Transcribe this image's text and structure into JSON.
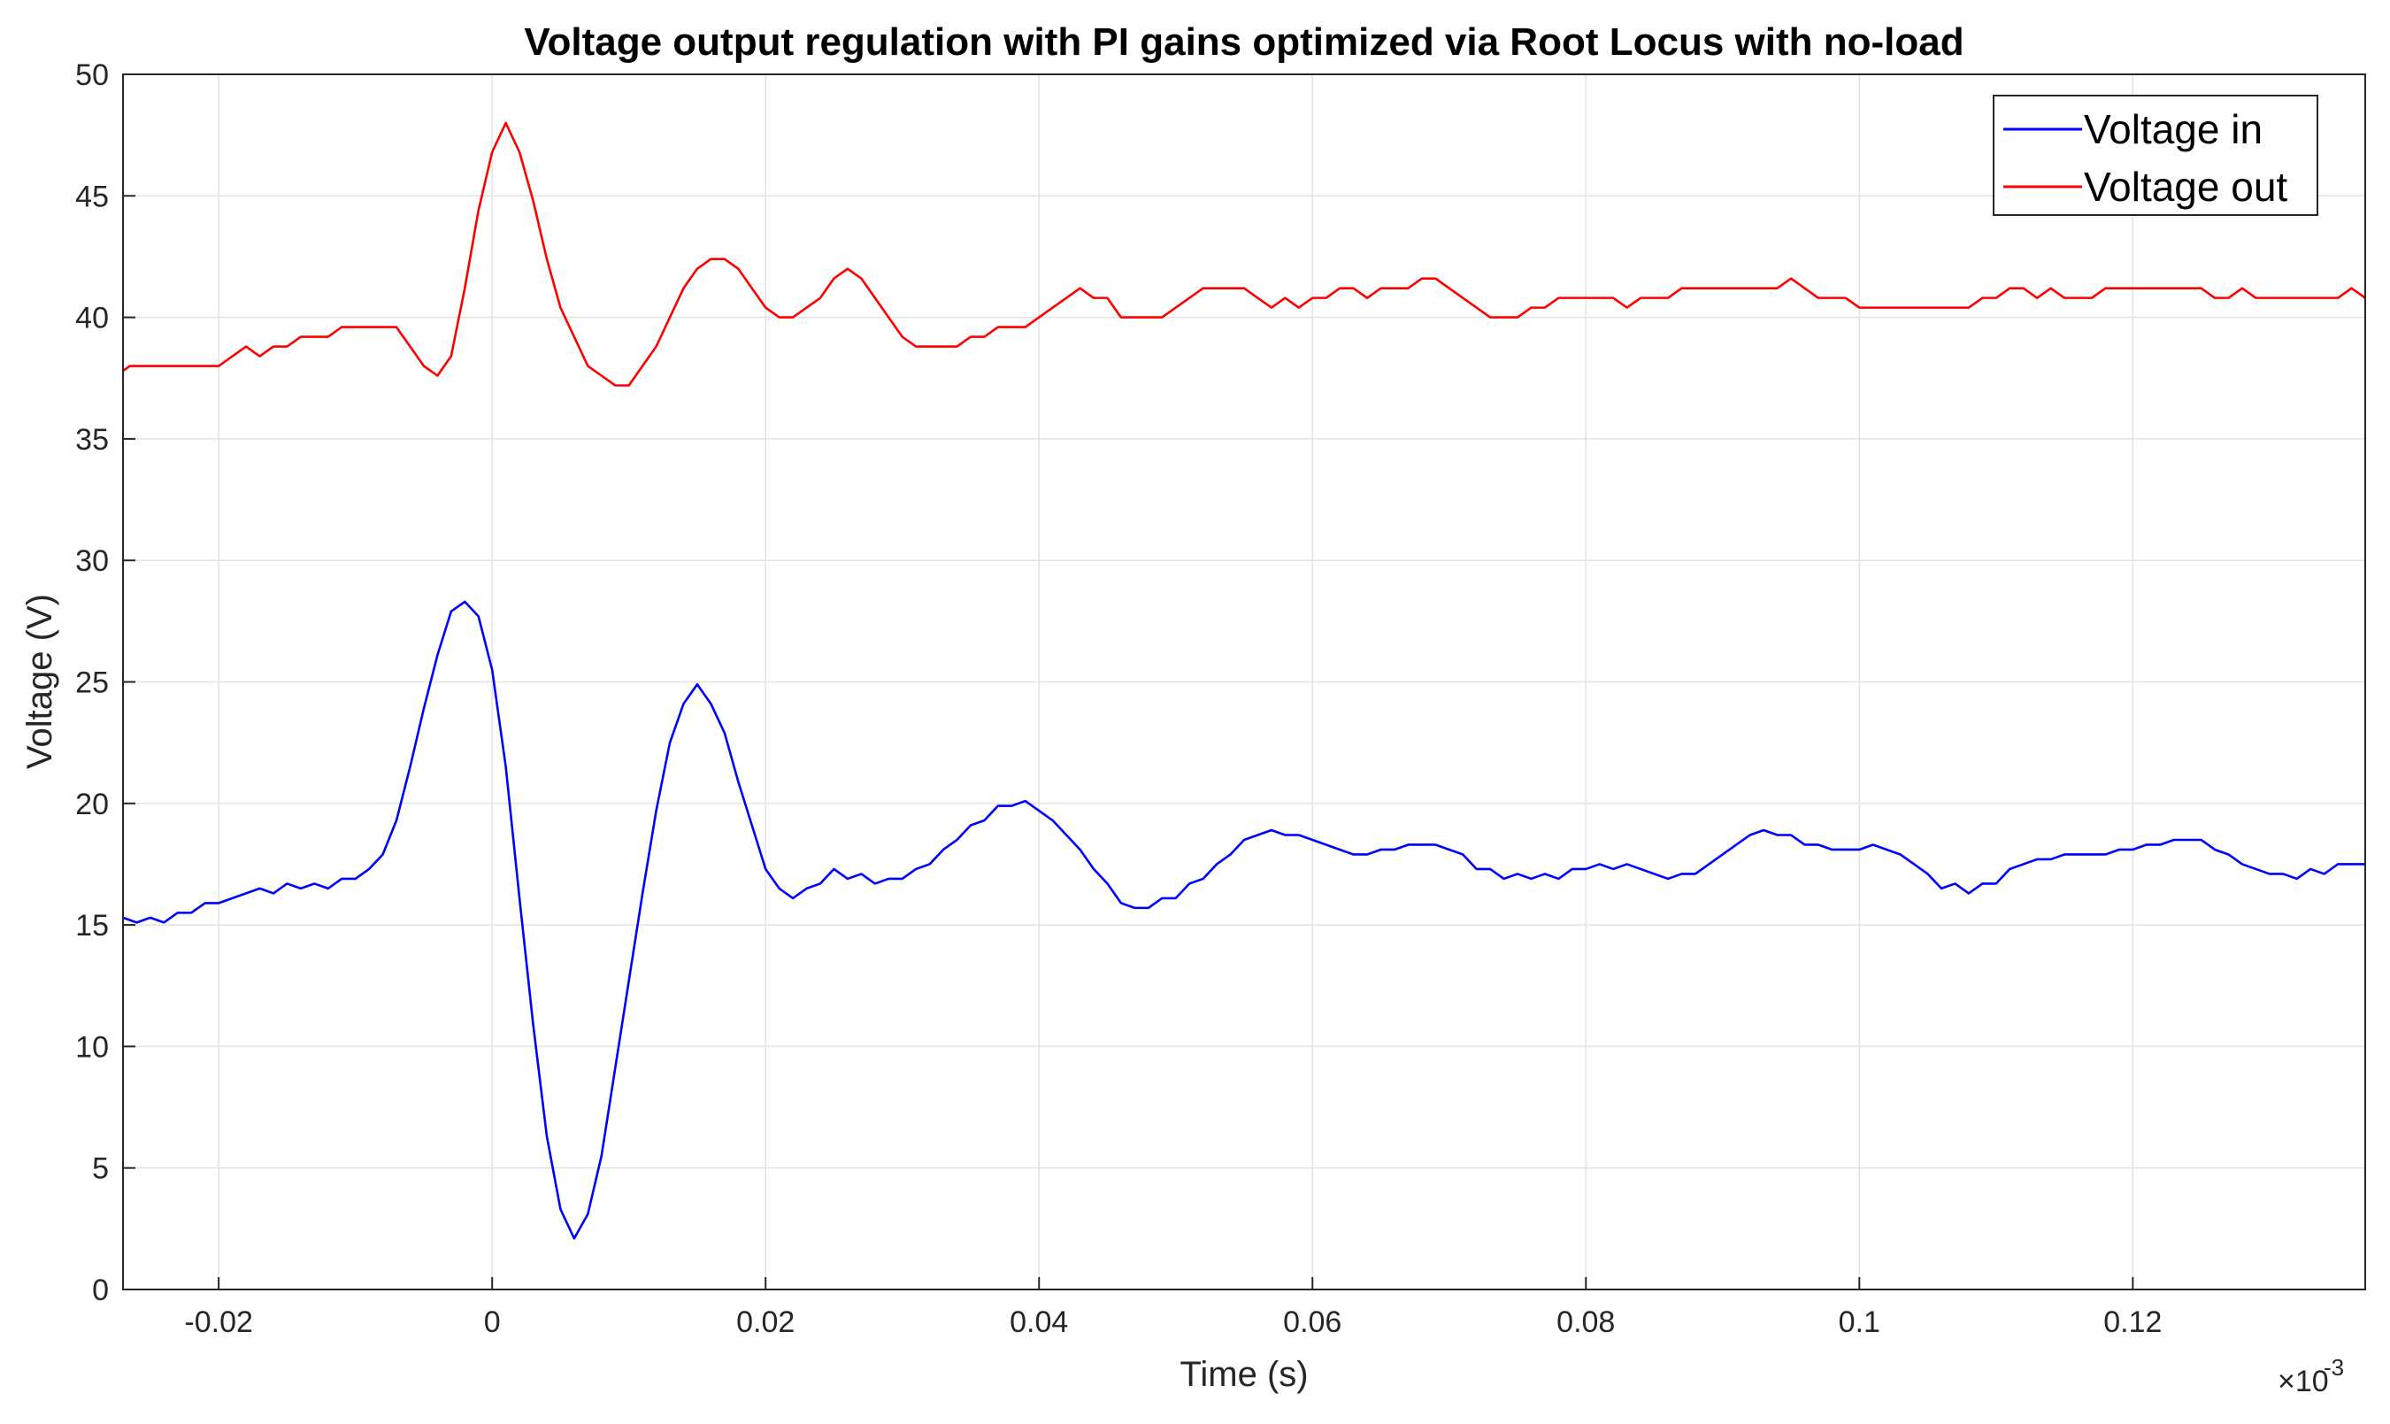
{
  "chart_data": {
    "type": "line",
    "title": "Voltage output regulation with PI gains optimized via Root Locus with no-load",
    "xlabel": "Time (s)",
    "ylabel": "Voltage (V)",
    "x_exponent_label": "×10",
    "x_exponent_power": "-3",
    "xlim": [
      -0.027,
      0.137
    ],
    "ylim": [
      0,
      50
    ],
    "x_ticks": [
      -0.02,
      0,
      0.02,
      0.04,
      0.06,
      0.08,
      0.1,
      0.12
    ],
    "x_tick_labels": [
      "-0.02",
      "0",
      "0.02",
      "0.04",
      "0.06",
      "0.08",
      "0.1",
      "0.12"
    ],
    "y_ticks": [
      0,
      5,
      10,
      15,
      20,
      25,
      30,
      35,
      40,
      45,
      50
    ],
    "y_tick_labels": [
      "0",
      "5",
      "10",
      "15",
      "20",
      "25",
      "30",
      "35",
      "40",
      "45",
      "50"
    ],
    "grid": true,
    "legend_position": "top-right",
    "series": [
      {
        "name": "Voltage in",
        "color": "#0000ff",
        "points": [
          [
            -0.027,
            15.3
          ],
          [
            -0.026,
            15.1
          ],
          [
            -0.025,
            15.3
          ],
          [
            -0.024,
            15.1
          ],
          [
            -0.023,
            15.5
          ],
          [
            -0.022,
            15.5
          ],
          [
            -0.021,
            15.9
          ],
          [
            -0.02,
            15.9
          ],
          [
            -0.019,
            16.1
          ],
          [
            -0.018,
            16.3
          ],
          [
            -0.017,
            16.5
          ],
          [
            -0.016,
            16.3
          ],
          [
            -0.015,
            16.7
          ],
          [
            -0.014,
            16.5
          ],
          [
            -0.013,
            16.7
          ],
          [
            -0.012,
            16.5
          ],
          [
            -0.011,
            16.9
          ],
          [
            -0.01,
            16.9
          ],
          [
            -0.009,
            17.3
          ],
          [
            -0.008,
            17.9
          ],
          [
            -0.007,
            19.3
          ],
          [
            -0.006,
            21.5
          ],
          [
            -0.005,
            23.9
          ],
          [
            -0.004,
            26.1
          ],
          [
            -0.003,
            27.9
          ],
          [
            -0.002,
            28.3
          ],
          [
            -0.001,
            27.7
          ],
          [
            0.0,
            25.5
          ],
          [
            0.001,
            21.5
          ],
          [
            0.002,
            16.1
          ],
          [
            0.003,
            10.9
          ],
          [
            0.004,
            6.3
          ],
          [
            0.005,
            3.3
          ],
          [
            0.006,
            2.1
          ],
          [
            0.007,
            3.1
          ],
          [
            0.008,
            5.5
          ],
          [
            0.009,
            9.1
          ],
          [
            0.01,
            12.7
          ],
          [
            0.011,
            16.3
          ],
          [
            0.012,
            19.7
          ],
          [
            0.013,
            22.5
          ],
          [
            0.014,
            24.1
          ],
          [
            0.015,
            24.9
          ],
          [
            0.016,
            24.1
          ],
          [
            0.017,
            22.9
          ],
          [
            0.018,
            20.9
          ],
          [
            0.019,
            19.1
          ],
          [
            0.02,
            17.3
          ],
          [
            0.021,
            16.5
          ],
          [
            0.022,
            16.1
          ],
          [
            0.023,
            16.5
          ],
          [
            0.024,
            16.7
          ],
          [
            0.025,
            17.3
          ],
          [
            0.026,
            16.9
          ],
          [
            0.027,
            17.1
          ],
          [
            0.028,
            16.7
          ],
          [
            0.029,
            16.9
          ],
          [
            0.03,
            16.9
          ],
          [
            0.031,
            17.3
          ],
          [
            0.032,
            17.5
          ],
          [
            0.033,
            18.1
          ],
          [
            0.034,
            18.5
          ],
          [
            0.035,
            19.1
          ],
          [
            0.036,
            19.3
          ],
          [
            0.037,
            19.9
          ],
          [
            0.038,
            19.9
          ],
          [
            0.039,
            20.1
          ],
          [
            0.04,
            19.7
          ],
          [
            0.041,
            19.3
          ],
          [
            0.042,
            18.7
          ],
          [
            0.043,
            18.1
          ],
          [
            0.044,
            17.3
          ],
          [
            0.045,
            16.7
          ],
          [
            0.046,
            15.9
          ],
          [
            0.047,
            15.7
          ],
          [
            0.048,
            15.7
          ],
          [
            0.049,
            16.1
          ],
          [
            0.05,
            16.1
          ],
          [
            0.051,
            16.7
          ],
          [
            0.052,
            16.9
          ],
          [
            0.053,
            17.5
          ],
          [
            0.054,
            17.9
          ],
          [
            0.055,
            18.5
          ],
          [
            0.056,
            18.7
          ],
          [
            0.057,
            18.9
          ],
          [
            0.058,
            18.7
          ],
          [
            0.059,
            18.7
          ],
          [
            0.06,
            18.5
          ],
          [
            0.061,
            18.3
          ],
          [
            0.062,
            18.1
          ],
          [
            0.063,
            17.9
          ],
          [
            0.064,
            17.9
          ],
          [
            0.065,
            18.1
          ],
          [
            0.066,
            18.1
          ],
          [
            0.067,
            18.3
          ],
          [
            0.068,
            18.3
          ],
          [
            0.069,
            18.3
          ],
          [
            0.07,
            18.1
          ],
          [
            0.071,
            17.9
          ],
          [
            0.072,
            17.3
          ],
          [
            0.073,
            17.3
          ],
          [
            0.074,
            16.9
          ],
          [
            0.075,
            17.1
          ],
          [
            0.076,
            16.9
          ],
          [
            0.077,
            17.1
          ],
          [
            0.078,
            16.9
          ],
          [
            0.079,
            17.3
          ],
          [
            0.08,
            17.3
          ],
          [
            0.081,
            17.5
          ],
          [
            0.082,
            17.3
          ],
          [
            0.083,
            17.5
          ],
          [
            0.084,
            17.3
          ],
          [
            0.085,
            17.1
          ],
          [
            0.086,
            16.9
          ],
          [
            0.087,
            17.1
          ],
          [
            0.088,
            17.1
          ],
          [
            0.089,
            17.5
          ],
          [
            0.09,
            17.9
          ],
          [
            0.091,
            18.3
          ],
          [
            0.092,
            18.7
          ],
          [
            0.093,
            18.9
          ],
          [
            0.094,
            18.7
          ],
          [
            0.095,
            18.7
          ],
          [
            0.096,
            18.3
          ],
          [
            0.097,
            18.3
          ],
          [
            0.098,
            18.1
          ],
          [
            0.099,
            18.1
          ],
          [
            0.1,
            18.1
          ],
          [
            0.101,
            18.3
          ],
          [
            0.102,
            18.1
          ],
          [
            0.103,
            17.9
          ],
          [
            0.104,
            17.5
          ],
          [
            0.105,
            17.1
          ],
          [
            0.106,
            16.5
          ],
          [
            0.107,
            16.7
          ],
          [
            0.108,
            16.3
          ],
          [
            0.109,
            16.7
          ],
          [
            0.11,
            16.7
          ],
          [
            0.111,
            17.3
          ],
          [
            0.112,
            17.5
          ],
          [
            0.113,
            17.7
          ],
          [
            0.114,
            17.7
          ],
          [
            0.115,
            17.9
          ],
          [
            0.116,
            17.9
          ],
          [
            0.117,
            17.9
          ],
          [
            0.118,
            17.9
          ],
          [
            0.119,
            18.1
          ],
          [
            0.12,
            18.1
          ],
          [
            0.121,
            18.3
          ],
          [
            0.122,
            18.3
          ],
          [
            0.123,
            18.5
          ],
          [
            0.124,
            18.5
          ],
          [
            0.125,
            18.5
          ],
          [
            0.126,
            18.1
          ],
          [
            0.127,
            17.9
          ],
          [
            0.128,
            17.5
          ],
          [
            0.129,
            17.3
          ],
          [
            0.13,
            17.1
          ],
          [
            0.131,
            17.1
          ],
          [
            0.132,
            16.9
          ],
          [
            0.133,
            17.3
          ],
          [
            0.134,
            17.1
          ],
          [
            0.135,
            17.5
          ],
          [
            0.136,
            17.5
          ],
          [
            0.137,
            17.5
          ],
          [
            0.1375,
            17.7
          ]
        ]
      },
      {
        "name": "Voltage out",
        "color": "#ff0000",
        "points": [
          [
            -0.027,
            37.8
          ],
          [
            -0.0265,
            38.0
          ],
          [
            -0.02,
            38.0
          ],
          [
            -0.019,
            38.4
          ],
          [
            -0.018,
            38.8
          ],
          [
            -0.017,
            38.4
          ],
          [
            -0.016,
            38.8
          ],
          [
            -0.015,
            38.8
          ],
          [
            -0.014,
            39.2
          ],
          [
            -0.013,
            39.2
          ],
          [
            -0.012,
            39.2
          ],
          [
            -0.011,
            39.6
          ],
          [
            -0.007,
            39.6
          ],
          [
            -0.006,
            38.8
          ],
          [
            -0.005,
            38.0
          ],
          [
            -0.004,
            37.6
          ],
          [
            -0.003,
            38.4
          ],
          [
            -0.002,
            41.2
          ],
          [
            -0.001,
            44.4
          ],
          [
            0.0,
            46.8
          ],
          [
            0.001,
            48.0
          ],
          [
            0.002,
            46.8
          ],
          [
            0.003,
            44.8
          ],
          [
            0.004,
            42.4
          ],
          [
            0.005,
            40.4
          ],
          [
            0.006,
            39.2
          ],
          [
            0.007,
            38.0
          ],
          [
            0.008,
            37.6
          ],
          [
            0.009,
            37.2
          ],
          [
            0.01,
            37.2
          ],
          [
            0.011,
            38.0
          ],
          [
            0.012,
            38.8
          ],
          [
            0.013,
            40.0
          ],
          [
            0.014,
            41.2
          ],
          [
            0.015,
            42.0
          ],
          [
            0.016,
            42.4
          ],
          [
            0.017,
            42.4
          ],
          [
            0.018,
            42.0
          ],
          [
            0.019,
            41.2
          ],
          [
            0.02,
            40.4
          ],
          [
            0.021,
            40.0
          ],
          [
            0.022,
            40.0
          ],
          [
            0.023,
            40.4
          ],
          [
            0.024,
            40.8
          ],
          [
            0.025,
            41.6
          ],
          [
            0.026,
            42.0
          ],
          [
            0.027,
            41.6
          ],
          [
            0.028,
            40.8
          ],
          [
            0.029,
            40.0
          ],
          [
            0.03,
            39.2
          ],
          [
            0.031,
            38.8
          ],
          [
            0.034,
            38.8
          ],
          [
            0.035,
            39.2
          ],
          [
            0.036,
            39.2
          ],
          [
            0.037,
            39.6
          ],
          [
            0.039,
            39.6
          ],
          [
            0.04,
            40.0
          ],
          [
            0.041,
            40.4
          ],
          [
            0.042,
            40.8
          ],
          [
            0.043,
            41.2
          ],
          [
            0.044,
            40.8
          ],
          [
            0.045,
            40.8
          ],
          [
            0.046,
            40.0
          ],
          [
            0.049,
            40.0
          ],
          [
            0.05,
            40.4
          ],
          [
            0.051,
            40.8
          ],
          [
            0.052,
            41.2
          ],
          [
            0.055,
            41.2
          ],
          [
            0.056,
            40.8
          ],
          [
            0.057,
            40.4
          ],
          [
            0.058,
            40.8
          ],
          [
            0.059,
            40.4
          ],
          [
            0.06,
            40.8
          ],
          [
            0.061,
            40.8
          ],
          [
            0.062,
            41.2
          ],
          [
            0.063,
            41.2
          ],
          [
            0.064,
            40.8
          ],
          [
            0.065,
            41.2
          ],
          [
            0.067,
            41.2
          ],
          [
            0.068,
            41.6
          ],
          [
            0.069,
            41.6
          ],
          [
            0.07,
            41.2
          ],
          [
            0.071,
            40.8
          ],
          [
            0.072,
            40.4
          ],
          [
            0.073,
            40.0
          ],
          [
            0.075,
            40.0
          ],
          [
            0.076,
            40.4
          ],
          [
            0.077,
            40.4
          ],
          [
            0.078,
            40.8
          ],
          [
            0.082,
            40.8
          ],
          [
            0.083,
            40.4
          ],
          [
            0.084,
            40.8
          ],
          [
            0.086,
            40.8
          ],
          [
            0.087,
            41.2
          ],
          [
            0.094,
            41.2
          ],
          [
            0.095,
            41.6
          ],
          [
            0.096,
            41.2
          ],
          [
            0.097,
            40.8
          ],
          [
            0.099,
            40.8
          ],
          [
            0.1,
            40.4
          ],
          [
            0.107,
            40.4
          ],
          [
            0.108,
            40.4
          ],
          [
            0.109,
            40.8
          ],
          [
            0.11,
            40.8
          ],
          [
            0.111,
            41.2
          ],
          [
            0.112,
            41.2
          ],
          [
            0.113,
            40.8
          ],
          [
            0.114,
            41.2
          ],
          [
            0.115,
            40.8
          ],
          [
            0.117,
            40.8
          ],
          [
            0.118,
            41.2
          ],
          [
            0.125,
            41.2
          ],
          [
            0.126,
            40.8
          ],
          [
            0.127,
            40.8
          ],
          [
            0.128,
            41.2
          ],
          [
            0.129,
            40.8
          ],
          [
            0.135,
            40.8
          ],
          [
            0.136,
            41.2
          ],
          [
            0.137,
            40.8
          ],
          [
            0.1375,
            40.8
          ]
        ]
      }
    ]
  }
}
